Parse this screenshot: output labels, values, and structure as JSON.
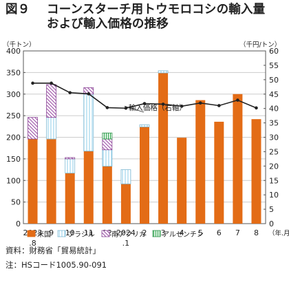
{
  "header": {
    "figure_no": "図９",
    "title_line1": "コーンスターチ用トウモロコシの輸入量",
    "title_line2": "および輸入価格の推移"
  },
  "footer": {
    "source": "資料：財務省「貿易統計」",
    "note": "注：HSコード1005.90-091"
  },
  "chart_data": {
    "type": "bar",
    "stacked": true,
    "left_unit": "（千トン）",
    "right_unit": "（千円/トン）",
    "x_unit": "（年.月）",
    "categories": [
      [
        "2023",
        ".8"
      ],
      [
        "9"
      ],
      [
        "10"
      ],
      [
        "11"
      ],
      [
        "12"
      ],
      [
        "2024",
        ".1"
      ],
      [
        "2"
      ],
      [
        "3"
      ],
      [
        "4"
      ],
      [
        "5"
      ],
      [
        "6"
      ],
      [
        "7"
      ],
      [
        "8"
      ]
    ],
    "ylim": [
      0,
      400
    ],
    "yticks": [
      0,
      50,
      100,
      150,
      200,
      250,
      300,
      350,
      400
    ],
    "y2lim": [
      0,
      60
    ],
    "y2ticks": [
      0,
      5,
      10,
      15,
      20,
      25,
      30,
      35,
      40,
      45,
      50,
      55,
      60
    ],
    "series": [
      {
        "name": "米国",
        "color": "#E36C16",
        "values": [
          196,
          196,
          117,
          168,
          133,
          92,
          224,
          349,
          199,
          286,
          236,
          300,
          242
        ]
      },
      {
        "name": "ブラジル",
        "color": "#9FD6EE",
        "values": [
          0,
          50,
          33,
          132,
          38,
          33,
          5,
          5,
          0,
          0,
          0,
          0,
          0
        ]
      },
      {
        "name": "南アフリカ",
        "color": "#9C4FA7",
        "values": [
          50,
          76,
          3,
          15,
          25,
          0,
          0,
          0,
          0,
          0,
          0,
          0,
          0
        ]
      },
      {
        "name": "アルゼンチン",
        "color": "#2FA84F",
        "values": [
          0,
          0,
          0,
          0,
          14,
          0,
          0,
          0,
          0,
          0,
          0,
          0,
          0
        ]
      }
    ],
    "line": {
      "name": "輸入価格（右軸）",
      "axis": "right",
      "color": "#222222",
      "values": [
        48.8,
        48.8,
        45.5,
        45.1,
        40.3,
        40.1,
        41.7,
        41.5,
        40.8,
        41.9,
        41.0,
        42.9,
        40.2
      ]
    }
  }
}
